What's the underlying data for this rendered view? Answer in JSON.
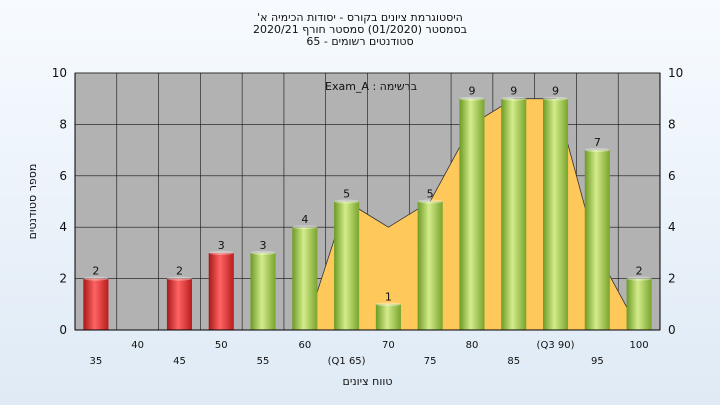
{
  "title_lines": [
    "'היסטוגרמת ציונים בקורס - יסודות הכימיה א",
    "בסמסטר  (01/2020)  סמסטר חורף  2020/21",
    "סטודנטים רשומים - 65"
  ],
  "chart_data": {
    "type": "bar",
    "categories": [
      "35",
      "40",
      "45",
      "50",
      "55",
      "60",
      "(Q1 65)",
      "70",
      "75",
      "80",
      "85",
      "(Q3 90)",
      "95",
      "100"
    ],
    "values": [
      2,
      0,
      2,
      3,
      3,
      4,
      5,
      1,
      5,
      9,
      9,
      9,
      7,
      2
    ],
    "bar_colors": [
      "red",
      "",
      "red",
      "red",
      "green",
      "green",
      "green",
      "green",
      "green",
      "green",
      "green",
      "green",
      "green",
      "green"
    ],
    "area_values": [
      0,
      0,
      0,
      0,
      0,
      0,
      5,
      4,
      5,
      8,
      9,
      9,
      3,
      0
    ],
    "ylabel": "מספר סטודנטים",
    "xlabel": "טווח ציונים",
    "ylim": [
      0,
      10
    ],
    "yticks": [
      0,
      2,
      4,
      6,
      8,
      10
    ],
    "annotation": "Exam_A : ברשימה",
    "grid": true
  },
  "colors": {
    "plot_bg": "#b2b2b2",
    "area": "#ffc85a",
    "bar_red": "#e23c3c",
    "bar_green": "#97c24a"
  }
}
